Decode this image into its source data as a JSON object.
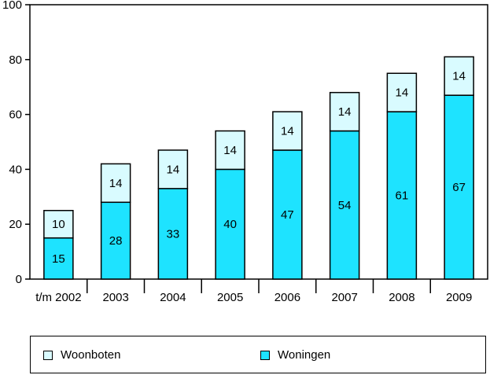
{
  "chart_data": {
    "type": "bar",
    "stacked": true,
    "categories": [
      "t/m 2002",
      "2003",
      "2004",
      "2005",
      "2006",
      "2007",
      "2008",
      "2009"
    ],
    "series": [
      {
        "name": "Woningen",
        "values": [
          15,
          28,
          33,
          40,
          47,
          54,
          61,
          67
        ],
        "color": "#1ee3ff"
      },
      {
        "name": "Woonboten",
        "values": [
          10,
          14,
          14,
          14,
          14,
          14,
          14,
          14
        ],
        "color": "#d9fbff"
      }
    ],
    "ylim": [
      0,
      100
    ],
    "yticks": [
      0,
      20,
      40,
      60,
      80,
      100
    ],
    "grid": false,
    "legend_position": "bottom"
  },
  "legend": {
    "woonboten": "Woonboten",
    "woningen": "Woningen"
  }
}
